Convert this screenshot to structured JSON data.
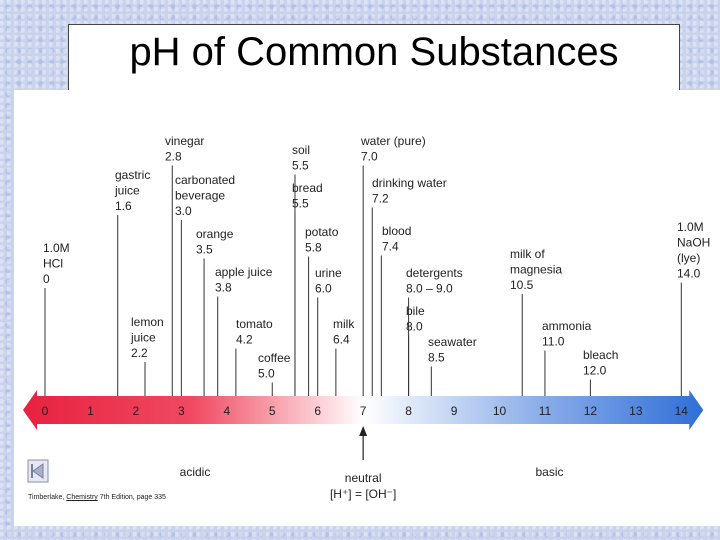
{
  "title": "pH of Common Substances",
  "scale": {
    "min": 0,
    "max": 14,
    "ticks": [
      "0",
      "1",
      "2",
      "3",
      "4",
      "5",
      "6",
      "7",
      "8",
      "9",
      "10",
      "11",
      "12",
      "13",
      "14"
    ],
    "acidic_label": "acidic",
    "basic_label": "basic",
    "neutral_label": "neutral",
    "neutral_formula": "[H⁺] = [OH⁻]",
    "neutral_value": 7
  },
  "substances": [
    {
      "lines": [
        "1.0M",
        "HCl",
        "0"
      ],
      "ph": 0
    },
    {
      "lines": [
        "gastric",
        "juice",
        "1.6"
      ],
      "ph": 1.6
    },
    {
      "lines": [
        "lemon",
        "juice",
        "2.2"
      ],
      "ph": 2.2
    },
    {
      "lines": [
        "vinegar",
        "2.8"
      ],
      "ph": 2.8
    },
    {
      "lines": [
        "carbonated",
        "beverage",
        "3.0"
      ],
      "ph": 3.0
    },
    {
      "lines": [
        "orange",
        "3.5"
      ],
      "ph": 3.5
    },
    {
      "lines": [
        "apple juice",
        "3.8"
      ],
      "ph": 3.8
    },
    {
      "lines": [
        "tomato",
        "4.2"
      ],
      "ph": 4.2
    },
    {
      "lines": [
        "coffee",
        "5.0"
      ],
      "ph": 5.0
    },
    {
      "lines": [
        "soil",
        "5.5"
      ],
      "ph": 5.5
    },
    {
      "lines": [
        "bread",
        "5.5"
      ],
      "ph": 5.5
    },
    {
      "lines": [
        "potato",
        "5.8"
      ],
      "ph": 5.8
    },
    {
      "lines": [
        "urine",
        "6.0"
      ],
      "ph": 6.0
    },
    {
      "lines": [
        "milk",
        "6.4"
      ],
      "ph": 6.4
    },
    {
      "lines": [
        "water (pure)",
        "7.0"
      ],
      "ph": 7.0
    },
    {
      "lines": [
        "drinking water",
        "7.2"
      ],
      "ph": 7.2
    },
    {
      "lines": [
        "blood",
        "7.4"
      ],
      "ph": 7.4
    },
    {
      "lines": [
        "detergents",
        "8.0 – 9.0"
      ],
      "ph": 8.0
    },
    {
      "lines": [
        "bile",
        "8.0"
      ],
      "ph": 8.0
    },
    {
      "lines": [
        "seawater",
        "8.5"
      ],
      "ph": 8.5
    },
    {
      "lines": [
        "milk of",
        "magnesia",
        "10.5"
      ],
      "ph": 10.5
    },
    {
      "lines": [
        "ammonia",
        "11.0"
      ],
      "ph": 11.0
    },
    {
      "lines": [
        "bleach",
        "12.0"
      ],
      "ph": 12.0
    },
    {
      "lines": [
        "1.0M",
        "NaOH",
        "(lye)",
        "14.0"
      ],
      "ph": 14.0
    }
  ],
  "colors": {
    "acid": "#e8213f",
    "neutral": "#ffffff",
    "base": "#2f6fd8"
  },
  "credit": {
    "author": "Timberlake, ",
    "book": "Chemistry",
    "rest": " 7th Edition, page 335"
  },
  "nav_icon": "back-arrow-icon"
}
